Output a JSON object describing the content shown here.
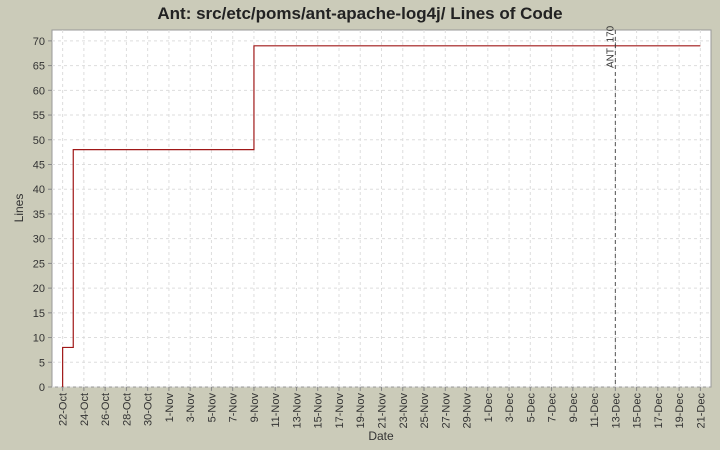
{
  "chart_data": {
    "type": "line",
    "title": "Ant: src/etc/poms/ant-apache-log4j/ Lines of Code",
    "x_label": "Date",
    "y_label": "Lines",
    "x": [
      "22-Oct",
      "22-Oct",
      "23-Oct",
      "23-Oct",
      "9-Nov",
      "9-Nov",
      "21-Dec"
    ],
    "series": [
      {
        "name": "Lines",
        "color": "#a01818",
        "values": [
          0,
          8,
          8,
          48,
          48,
          69,
          69
        ]
      }
    ],
    "xlim": [
      "21-Oct",
      "22-Dec"
    ],
    "xticks": [
      "22-Oct",
      "24-Oct",
      "26-Oct",
      "28-Oct",
      "30-Oct",
      "1-Nov",
      "3-Nov",
      "5-Nov",
      "7-Nov",
      "9-Nov",
      "11-Nov",
      "13-Nov",
      "15-Nov",
      "17-Nov",
      "19-Nov",
      "21-Nov",
      "23-Nov",
      "25-Nov",
      "27-Nov",
      "29-Nov",
      "1-Dec",
      "3-Dec",
      "5-Dec",
      "7-Dec",
      "9-Dec",
      "11-Dec",
      "13-Dec",
      "15-Dec",
      "17-Dec",
      "19-Dec",
      "21-Dec"
    ],
    "ylim": [
      0,
      72.2
    ],
    "yticks": [
      0,
      5,
      10,
      15,
      20,
      25,
      30,
      35,
      40,
      45,
      50,
      55,
      60,
      65,
      70
    ],
    "grid": true,
    "annotations": [
      {
        "x": "13-Dec",
        "label": "ANT_170"
      }
    ]
  }
}
